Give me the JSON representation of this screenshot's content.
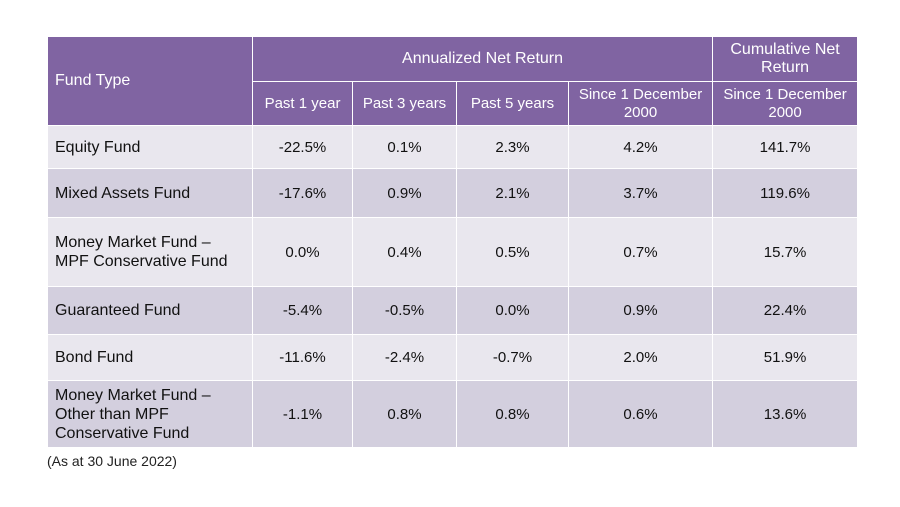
{
  "header": {
    "fund_type": "Fund Type",
    "annualized": "Annualized Net Return",
    "cumulative": "Cumulative Net Return",
    "periods": [
      "Past 1 year",
      "Past 3 years",
      "Past 5 years",
      "Since 1 December 2000"
    ],
    "cumulative_period": "Since 1 December 2000"
  },
  "rows": [
    {
      "name_lines": [
        "Equity Fund"
      ],
      "values": [
        "-22.5%",
        "0.1%",
        "2.3%",
        "4.2%",
        "141.7%"
      ]
    },
    {
      "name_lines": [
        "Mixed Assets Fund"
      ],
      "values": [
        "-17.6%",
        "0.9%",
        "2.1%",
        "3.7%",
        "119.6%"
      ]
    },
    {
      "name_lines": [
        "Money Market Fund –",
        "MPF Conservative Fund"
      ],
      "values": [
        "0.0%",
        "0.4%",
        "0.5%",
        "0.7%",
        "15.7%"
      ]
    },
    {
      "name_lines": [
        "Guaranteed Fund"
      ],
      "values": [
        "-5.4%",
        "-0.5%",
        "0.0%",
        "0.9%",
        "22.4%"
      ]
    },
    {
      "name_lines": [
        "Bond Fund"
      ],
      "values": [
        "-11.6%",
        "-2.4%",
        "-0.7%",
        "2.0%",
        "51.9%"
      ]
    },
    {
      "name_lines": [
        "Money Market Fund –",
        "Other than MPF",
        "Conservative Fund"
      ],
      "values": [
        "-1.1%",
        "0.8%",
        "0.8%",
        "0.6%",
        "13.6%"
      ]
    }
  ],
  "note": "(As at 30 June 2022)"
}
